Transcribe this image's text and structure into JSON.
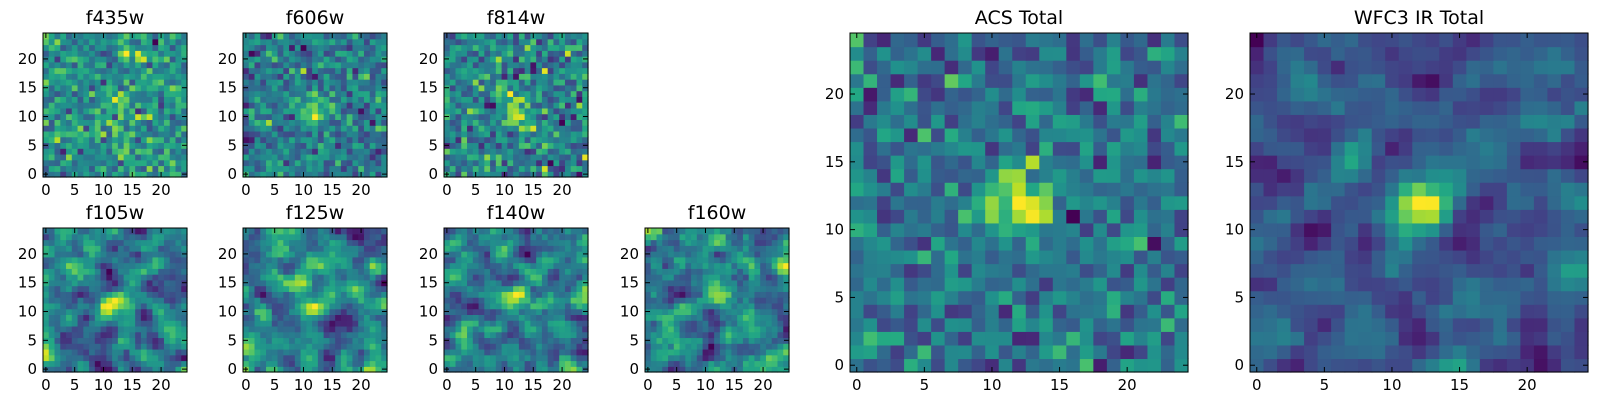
{
  "chart_data": [
    {
      "type": "heatmap",
      "title": "f435w",
      "xticks": [
        0,
        5,
        10,
        15,
        20
      ],
      "yticks": [
        0,
        5,
        10,
        15,
        20
      ],
      "grid_size": [
        25,
        25
      ],
      "colormap": "viridis",
      "noise": 0.85,
      "source_strength": 0.45,
      "source_center": [
        12,
        12
      ],
      "seed": 11
    },
    {
      "type": "heatmap",
      "title": "f606w",
      "xticks": [
        0,
        5,
        10,
        15,
        20
      ],
      "yticks": [
        0,
        5,
        10,
        15,
        20
      ],
      "grid_size": [
        25,
        25
      ],
      "colormap": "viridis",
      "noise": 0.75,
      "source_strength": 0.8,
      "source_center": [
        12,
        11
      ],
      "seed": 23
    },
    {
      "type": "heatmap",
      "title": "f814w",
      "xticks": [
        0,
        5,
        10,
        15,
        20
      ],
      "yticks": [
        0,
        5,
        10,
        15,
        20
      ],
      "grid_size": [
        25,
        25
      ],
      "colormap": "viridis",
      "noise": 0.75,
      "source_strength": 0.8,
      "source_center": [
        12,
        11
      ],
      "seed": 37
    },
    {
      "type": "heatmap",
      "title": "f105w",
      "xticks": [
        0,
        5,
        10,
        15,
        20
      ],
      "yticks": [
        0,
        5,
        10,
        15,
        20
      ],
      "grid_size": [
        25,
        25
      ],
      "colormap": "viridis",
      "noise": 0.6,
      "source_strength": 0.6,
      "source_center": [
        12,
        11
      ],
      "seed": 41,
      "smooth": true
    },
    {
      "type": "heatmap",
      "title": "f125w",
      "xticks": [
        0,
        5,
        10,
        15,
        20
      ],
      "yticks": [
        0,
        5,
        10,
        15,
        20
      ],
      "grid_size": [
        25,
        25
      ],
      "colormap": "viridis",
      "noise": 0.6,
      "source_strength": 0.6,
      "source_center": [
        12,
        11
      ],
      "seed": 53,
      "smooth": true
    },
    {
      "type": "heatmap",
      "title": "f140w",
      "xticks": [
        0,
        5,
        10,
        15,
        20
      ],
      "yticks": [
        0,
        5,
        10,
        15,
        20
      ],
      "grid_size": [
        25,
        25
      ],
      "colormap": "viridis",
      "noise": 0.6,
      "source_strength": 0.6,
      "source_center": [
        12,
        12
      ],
      "seed": 67,
      "smooth": true
    },
    {
      "type": "heatmap",
      "title": "f160w",
      "xticks": [
        0,
        5,
        10,
        15,
        20
      ],
      "yticks": [
        0,
        5,
        10,
        15,
        20
      ],
      "grid_size": [
        25,
        25
      ],
      "colormap": "viridis",
      "noise": 0.6,
      "source_strength": 0.7,
      "source_center": [
        12,
        12
      ],
      "seed": 71,
      "smooth": true
    },
    {
      "type": "heatmap",
      "title": "ACS Total",
      "xticks": [
        0,
        5,
        10,
        15,
        20
      ],
      "yticks": [
        0,
        5,
        10,
        15,
        20
      ],
      "grid_size": [
        25,
        25
      ],
      "colormap": "viridis",
      "noise": 0.55,
      "source_strength": 1.0,
      "source_center": [
        12,
        12
      ],
      "seed": 83
    },
    {
      "type": "heatmap",
      "title": "WFC3 IR Total",
      "xticks": [
        0,
        5,
        10,
        15,
        20
      ],
      "yticks": [
        0,
        5,
        10,
        15,
        20
      ],
      "grid_size": [
        25,
        25
      ],
      "colormap": "viridis",
      "noise": 0.45,
      "source_strength": 1.0,
      "source_center": [
        12,
        12
      ],
      "seed": 97,
      "smooth": true
    }
  ]
}
